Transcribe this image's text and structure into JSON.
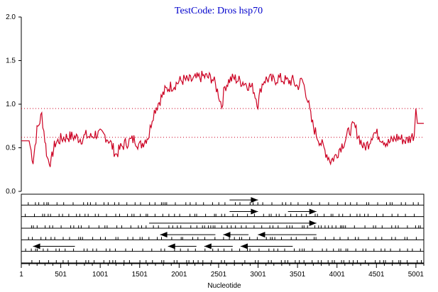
{
  "chart_data": {
    "type": "line",
    "title": "TestCode: Dros hsp70",
    "xlabel": "Nucleotide",
    "ylabel": "",
    "xlim": [
      1,
      5101
    ],
    "ylim": [
      0.0,
      2.0
    ],
    "y_ticks": [
      "0.0",
      "0.5",
      "1.0",
      "1.5",
      "2.0"
    ],
    "x_ticks": [
      {
        "value": 1,
        "label": "1"
      },
      {
        "value": 501,
        "label": "501"
      },
      {
        "value": 1001,
        "label": "1001"
      },
      {
        "value": 1501,
        "label": "1501"
      },
      {
        "value": 2001,
        "label": "2001"
      },
      {
        "value": 2501,
        "label": "2501"
      },
      {
        "value": 3001,
        "label": "3001"
      },
      {
        "value": 3501,
        "label": "3501"
      },
      {
        "value": 4001,
        "label": "4001"
      },
      {
        "value": 4501,
        "label": "4501"
      },
      {
        "value": 5001,
        "label": "5001"
      }
    ],
    "thresholds": [
      0.95,
      0.62
    ],
    "line_color": "#cc0022",
    "threshold_color": "#cc0022",
    "series": [
      {
        "x": [
          1,
          100,
          150,
          200,
          260,
          300,
          330,
          380,
          400,
          430,
          500,
          560,
          640,
          700,
          760,
          820,
          880,
          940,
          1000,
          1060,
          1120,
          1200,
          1260,
          1320,
          1380,
          1440,
          1500,
          1560,
          1620,
          1660,
          1700,
          1760,
          1820,
          1880,
          1940,
          2000,
          2060,
          2120,
          2180,
          2240,
          2300,
          2360,
          2420,
          2460,
          2500,
          2540,
          2580,
          2640,
          2700,
          2760,
          2820,
          2880,
          2940,
          3000,
          3040,
          3080,
          3140,
          3200,
          3260,
          3320,
          3380,
          3440,
          3500,
          3560,
          3620,
          3680,
          3740,
          3800,
          3860,
          3920,
          3980,
          4040,
          4100,
          4160,
          4220,
          4280,
          4340,
          4400,
          4460,
          4520,
          4580,
          4640,
          4700,
          4760,
          4820,
          4880,
          4940,
          4980,
          5000,
          5020,
          5101
        ],
        "y": [
          0.58,
          0.58,
          0.35,
          0.7,
          0.88,
          0.6,
          0.38,
          0.33,
          0.45,
          0.55,
          0.6,
          0.62,
          0.63,
          0.62,
          0.6,
          0.64,
          0.62,
          0.66,
          0.65,
          0.64,
          0.58,
          0.42,
          0.5,
          0.55,
          0.58,
          0.6,
          0.52,
          0.58,
          0.65,
          0.85,
          0.95,
          1.05,
          1.15,
          1.2,
          1.22,
          1.26,
          1.28,
          1.27,
          1.28,
          1.3,
          1.32,
          1.31,
          1.3,
          1.22,
          1.12,
          0.98,
          1.2,
          1.28,
          1.3,
          1.27,
          1.25,
          1.22,
          1.18,
          1.0,
          1.2,
          1.28,
          1.29,
          1.27,
          1.3,
          1.28,
          1.26,
          1.27,
          1.2,
          1.28,
          1.1,
          0.8,
          0.65,
          0.55,
          0.45,
          0.35,
          0.4,
          0.5,
          0.58,
          0.7,
          0.75,
          0.62,
          0.5,
          0.55,
          0.68,
          0.65,
          0.6,
          0.55,
          0.58,
          0.62,
          0.6,
          0.58,
          0.62,
          0.65,
          0.95,
          0.78,
          0.78
        ]
      }
    ],
    "tracks": [
      {
        "arrows": [
          {
            "from": 2640,
            "to": 3000,
            "direction": "right"
          }
        ]
      },
      {
        "arrows": [
          {
            "from": 2640,
            "to": 3000,
            "direction": "right"
          },
          {
            "from": 3380,
            "to": 3740,
            "direction": "right"
          }
        ]
      },
      {
        "arrows": [
          {
            "from": 1620,
            "to": 3740,
            "direction": "right"
          }
        ]
      },
      {
        "arrows": [
          {
            "from": 1760,
            "to": 2460,
            "direction": "left"
          },
          {
            "from": 2560,
            "to": 2880,
            "direction": "left"
          },
          {
            "from": 3000,
            "to": 3740,
            "direction": "left"
          }
        ]
      },
      {
        "arrows": [
          {
            "from": 150,
            "to": 680,
            "direction": "left"
          },
          {
            "from": 1860,
            "to": 2220,
            "direction": "left"
          },
          {
            "from": 2320,
            "to": 2680,
            "direction": "left"
          },
          {
            "from": 2780,
            "to": 3440,
            "direction": "left"
          }
        ]
      },
      {
        "arrows": []
      }
    ]
  }
}
